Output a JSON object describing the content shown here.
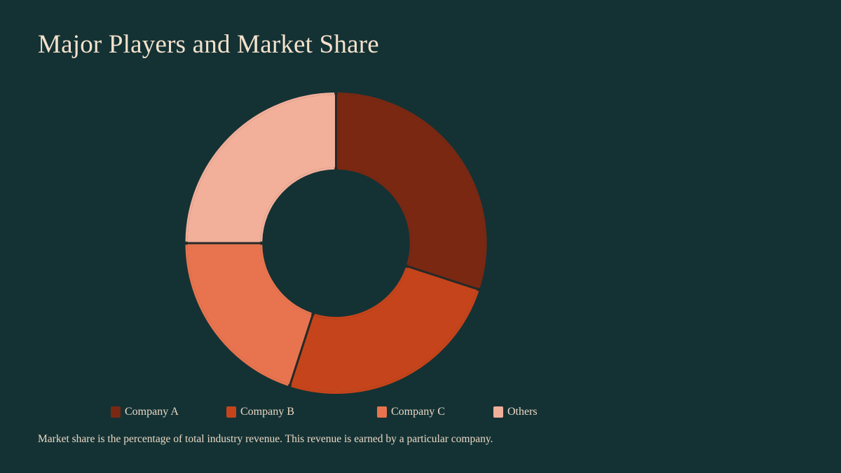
{
  "page": {
    "title": "Major Players and Market Share",
    "caption": "Market share is the percentage of total industry revenue. This revenue is earned by a particular company."
  },
  "colors": {
    "background": "#143234",
    "text": "#f3e1cc",
    "separator": "#262a27"
  },
  "chart_data": {
    "type": "pie",
    "variant": "donut",
    "title": "Major Players and Market Share",
    "categories": [
      "Company A",
      "Company B",
      "Company C",
      "Others"
    ],
    "values": [
      30,
      25,
      20,
      25
    ],
    "unit": "%",
    "colors": [
      "#7a2812",
      "#c5441b",
      "#e8744f",
      "#f2af9a"
    ],
    "start_angle_deg": 0,
    "direction": "clockwise",
    "inner_radius_ratio": 0.5,
    "legend_position": "bottom",
    "data_labels": false
  },
  "legend": {
    "items": [
      {
        "label": "Company A",
        "color": "#7a2812"
      },
      {
        "label": "Company B",
        "color": "#c5441b"
      },
      {
        "label": "Company C",
        "color": "#e8744f"
      },
      {
        "label": "Others",
        "color": "#f2af9a"
      }
    ]
  }
}
